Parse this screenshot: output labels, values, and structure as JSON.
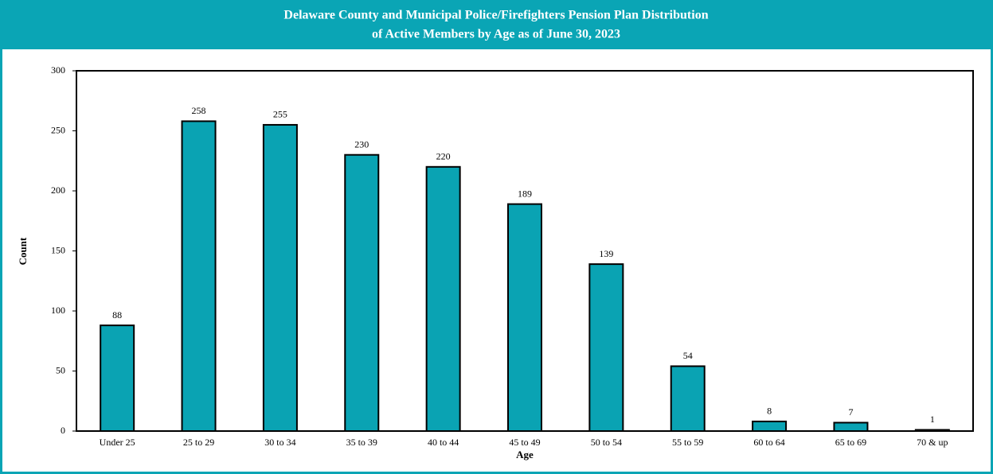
{
  "chart_data": {
    "type": "bar",
    "title": [
      "Delaware County and Municipal Police/Firefighters Pension Plan Distribution",
      "of Active Members by Age as of June 30, 2023"
    ],
    "x_label": "Age",
    "y_label": "Count",
    "categories": [
      "Under 25",
      "25 to 29",
      "30 to 34",
      "35 to 39",
      "40 to 44",
      "45 to 49",
      "50 to 54",
      "55 to 59",
      "60 to 64",
      "65 to 69",
      "70 & up"
    ],
    "values": [
      88,
      258,
      255,
      230,
      220,
      189,
      139,
      54,
      8,
      7,
      1
    ],
    "color": "#0aa3b3",
    "ylim": [
      0,
      300
    ],
    "yticks": [
      0,
      50,
      100,
      150,
      200,
      250,
      300
    ],
    "grid": false
  }
}
